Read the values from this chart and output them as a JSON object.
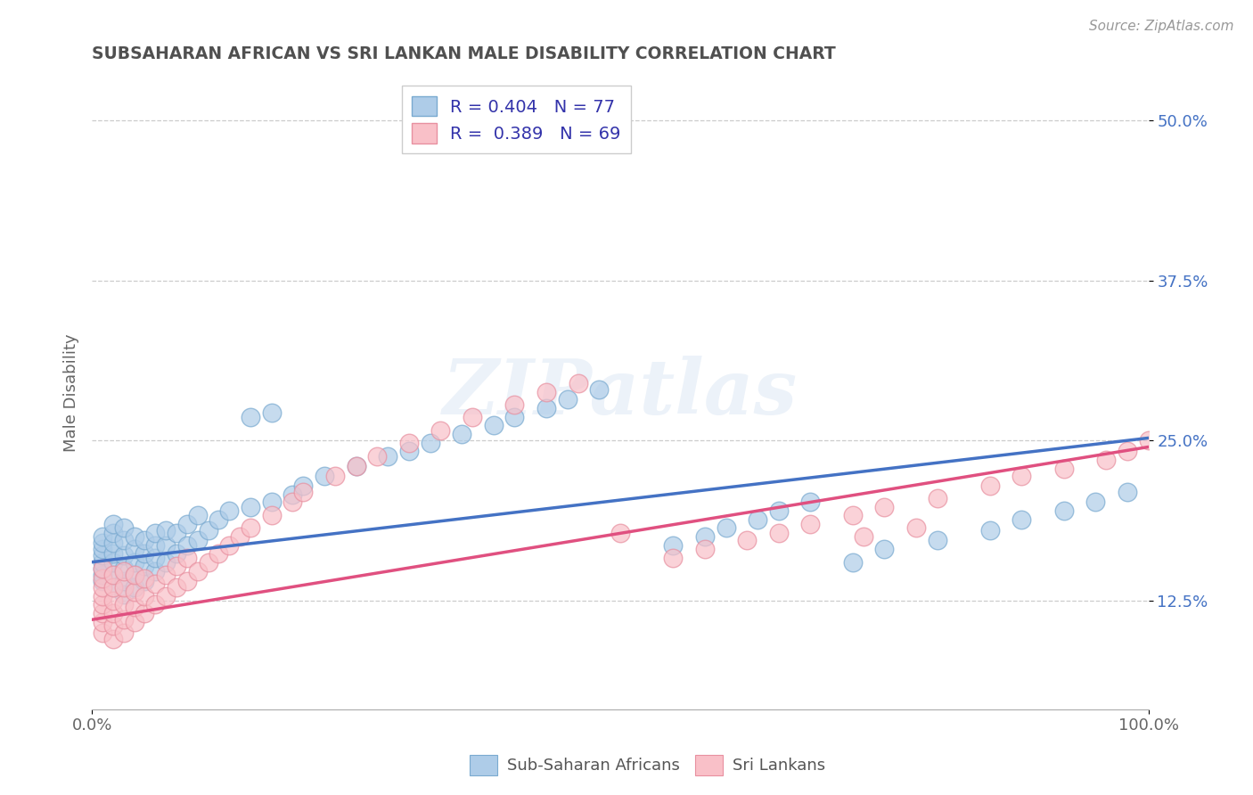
{
  "title": "SUBSAHARAN AFRICAN VS SRI LANKAN MALE DISABILITY CORRELATION CHART",
  "source_text": "Source: ZipAtlas.com",
  "ylabel": "Male Disability",
  "xlim": [
    0,
    1.0
  ],
  "ylim": [
    0.04,
    0.535
  ],
  "yticks": [
    0.125,
    0.25,
    0.375,
    0.5
  ],
  "ytick_labels": [
    "12.5%",
    "25.0%",
    "37.5%",
    "50.0%"
  ],
  "xticks": [
    0.0,
    1.0
  ],
  "xtick_labels": [
    "0.0%",
    "100.0%"
  ],
  "legend_r_blue": "0.404",
  "legend_n_blue": "77",
  "legend_r_pink": "0.389",
  "legend_n_pink": "69",
  "legend_label_blue": "Sub-Saharan Africans",
  "legend_label_pink": "Sri Lankans",
  "blue_scatter_color": "#AECCE8",
  "blue_edge_color": "#7AAAD0",
  "pink_scatter_color": "#F9C0C8",
  "pink_edge_color": "#E890A0",
  "trend_blue_color": "#4472C4",
  "trend_pink_color": "#E05080",
  "background_color": "#ffffff",
  "grid_color": "#cccccc",
  "title_color": "#505050",
  "ytick_color": "#4472C4",
  "watermark": "ZIPatlas",
  "blue_x": [
    0.01,
    0.01,
    0.01,
    0.01,
    0.01,
    0.01,
    0.01,
    0.01,
    0.02,
    0.02,
    0.02,
    0.02,
    0.02,
    0.02,
    0.02,
    0.03,
    0.03,
    0.03,
    0.03,
    0.03,
    0.03,
    0.04,
    0.04,
    0.04,
    0.04,
    0.04,
    0.05,
    0.05,
    0.05,
    0.05,
    0.06,
    0.06,
    0.06,
    0.06,
    0.07,
    0.07,
    0.07,
    0.08,
    0.08,
    0.09,
    0.09,
    0.1,
    0.1,
    0.11,
    0.12,
    0.13,
    0.15,
    0.15,
    0.17,
    0.17,
    0.19,
    0.2,
    0.22,
    0.25,
    0.28,
    0.3,
    0.32,
    0.35,
    0.38,
    0.4,
    0.43,
    0.45,
    0.48,
    0.55,
    0.58,
    0.6,
    0.63,
    0.65,
    0.68,
    0.72,
    0.75,
    0.8,
    0.85,
    0.88,
    0.92,
    0.95,
    0.98
  ],
  "blue_y": [
    0.14,
    0.145,
    0.15,
    0.155,
    0.16,
    0.165,
    0.17,
    0.175,
    0.135,
    0.145,
    0.155,
    0.162,
    0.17,
    0.178,
    0.185,
    0.13,
    0.14,
    0.15,
    0.16,
    0.172,
    0.182,
    0.135,
    0.145,
    0.155,
    0.165,
    0.175,
    0.14,
    0.152,
    0.162,
    0.172,
    0.148,
    0.158,
    0.168,
    0.178,
    0.155,
    0.168,
    0.18,
    0.162,
    0.178,
    0.168,
    0.185,
    0.172,
    0.192,
    0.18,
    0.188,
    0.195,
    0.198,
    0.268,
    0.202,
    0.272,
    0.208,
    0.215,
    0.222,
    0.23,
    0.238,
    0.242,
    0.248,
    0.255,
    0.262,
    0.268,
    0.275,
    0.282,
    0.29,
    0.168,
    0.175,
    0.182,
    0.188,
    0.195,
    0.202,
    0.155,
    0.165,
    0.172,
    0.18,
    0.188,
    0.195,
    0.202,
    0.21
  ],
  "pink_x": [
    0.01,
    0.01,
    0.01,
    0.01,
    0.01,
    0.01,
    0.01,
    0.01,
    0.02,
    0.02,
    0.02,
    0.02,
    0.02,
    0.02,
    0.03,
    0.03,
    0.03,
    0.03,
    0.03,
    0.04,
    0.04,
    0.04,
    0.04,
    0.05,
    0.05,
    0.05,
    0.06,
    0.06,
    0.07,
    0.07,
    0.08,
    0.08,
    0.09,
    0.09,
    0.1,
    0.11,
    0.12,
    0.13,
    0.14,
    0.15,
    0.17,
    0.19,
    0.2,
    0.23,
    0.25,
    0.27,
    0.3,
    0.33,
    0.36,
    0.4,
    0.43,
    0.46,
    0.5,
    0.55,
    0.58,
    0.62,
    0.65,
    0.68,
    0.72,
    0.75,
    0.8,
    0.85,
    0.88,
    0.92,
    0.96,
    0.98,
    1.0,
    0.73,
    0.78
  ],
  "pink_y": [
    0.1,
    0.108,
    0.115,
    0.122,
    0.128,
    0.135,
    0.142,
    0.15,
    0.095,
    0.105,
    0.115,
    0.125,
    0.135,
    0.145,
    0.1,
    0.11,
    0.122,
    0.135,
    0.148,
    0.108,
    0.12,
    0.132,
    0.145,
    0.115,
    0.128,
    0.142,
    0.122,
    0.138,
    0.128,
    0.145,
    0.135,
    0.152,
    0.14,
    0.158,
    0.148,
    0.155,
    0.162,
    0.168,
    0.175,
    0.182,
    0.192,
    0.202,
    0.21,
    0.222,
    0.23,
    0.238,
    0.248,
    0.258,
    0.268,
    0.278,
    0.288,
    0.295,
    0.178,
    0.158,
    0.165,
    0.172,
    0.178,
    0.185,
    0.192,
    0.198,
    0.205,
    0.215,
    0.222,
    0.228,
    0.235,
    0.242,
    0.25,
    0.175,
    0.182
  ]
}
